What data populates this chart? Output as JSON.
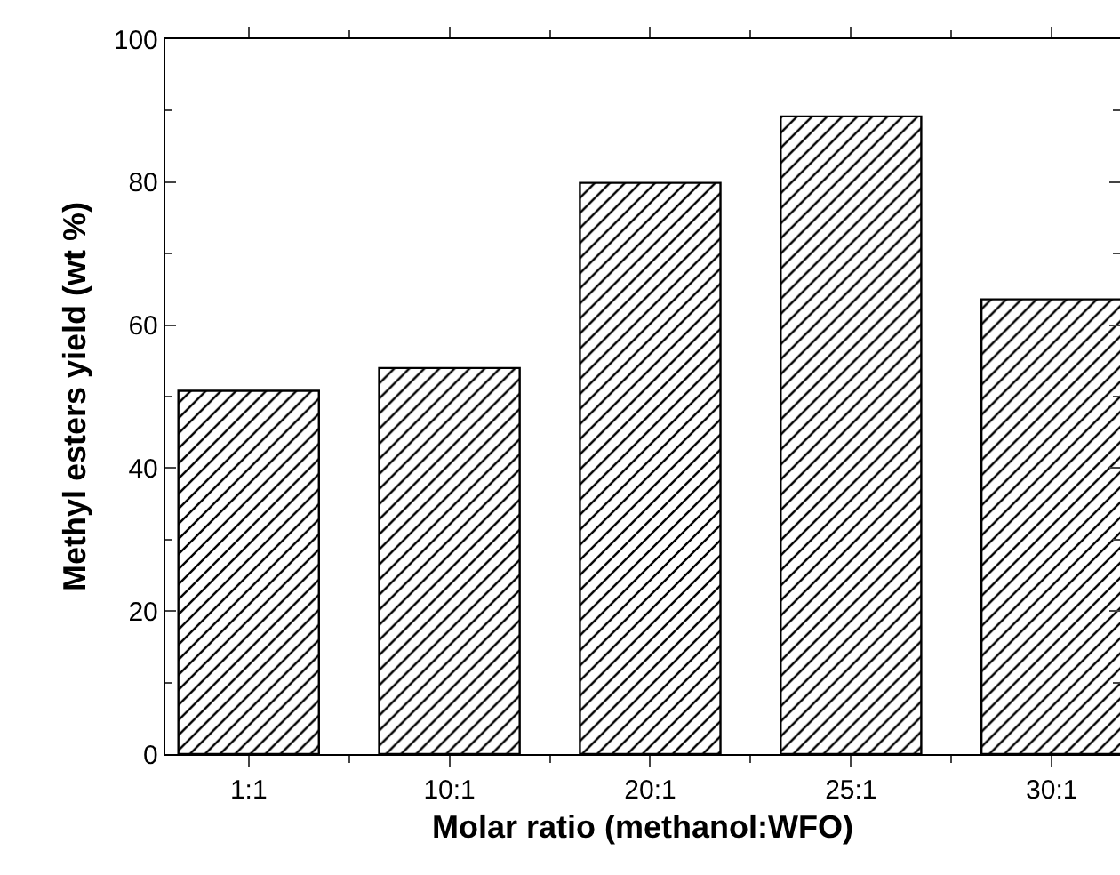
{
  "chart_data": {
    "type": "bar",
    "xlabel": "Molar ratio (methanol:WFO)",
    "ylabel": "Methyl esters yield (wt %)",
    "categories": [
      "1:1",
      "10:1",
      "20:1",
      "25:1",
      "30:1"
    ],
    "values": [
      50.8,
      54.0,
      79.9,
      89.2,
      63.6
    ],
    "color": "#000000",
    "ylim": [
      0,
      100
    ],
    "yticks": [
      0,
      20,
      40,
      60,
      80,
      100
    ],
    "grid": false
  }
}
